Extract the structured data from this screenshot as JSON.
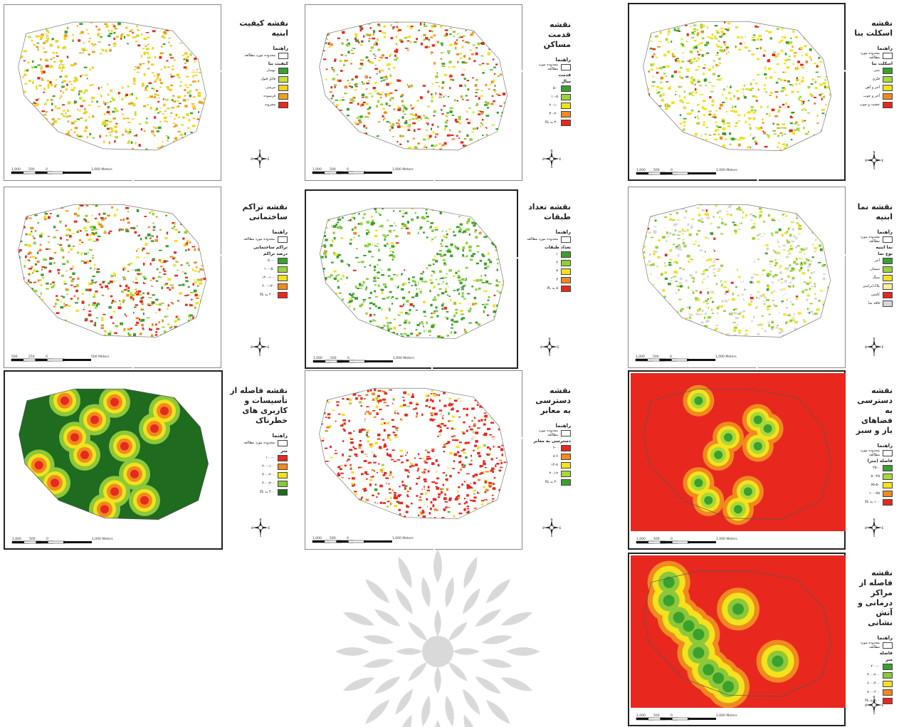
{
  "panels": [
    {
      "id": "p1",
      "title": "نقشه کیفیت\nابنیه",
      "legend_heading": "راهنما",
      "study_area": "محدوده مورد مطالعه",
      "group": "کیفیت بنا",
      "subgroup": "",
      "items": [
        {
          "label": "نوساز",
          "color": "#3aa02e"
        },
        {
          "label": "قابل قبول",
          "color": "#c6e03a"
        },
        {
          "label": "مرمتی",
          "color": "#f2d21c"
        },
        {
          "label": "فرسوده",
          "color": "#f0a020"
        },
        {
          "label": "مخروبه",
          "color": "#e8281e"
        }
      ],
      "scale": [
        "1,000",
        "500",
        "0",
        "1,000 Meters"
      ]
    },
    {
      "id": "p2",
      "title": "نقشه قدمت\nمساکن",
      "legend_heading": "راهنما",
      "study_area": "محدوده مورد مطالعه",
      "group": "قدمت",
      "subgroup": "سال",
      "items": [
        {
          "label": "۵-۰",
          "color": "#3aa02e"
        },
        {
          "label": "۱۰-۵",
          "color": "#9ad23a"
        },
        {
          "label": "۲۰-۱۰",
          "color": "#f2e21c"
        },
        {
          "label": "۳۰-۲۰",
          "color": "#f08a20"
        },
        {
          "label": "۳۰ به بالا",
          "color": "#e8281e"
        }
      ],
      "scale": [
        "1,000",
        "500",
        "0",
        "1,000 Meters"
      ]
    },
    {
      "id": "p3",
      "title": "نقشه اسکلت بنا",
      "legend_heading": "راهنما",
      "study_area": "محدوده مورد مطالعه",
      "group": "اسکلت بنا",
      "subgroup": "",
      "items": [
        {
          "label": "بتنی",
          "color": "#3aa02e"
        },
        {
          "label": "فلزی",
          "color": "#a6d83a"
        },
        {
          "label": "آجر و آهن",
          "color": "#f2e21c"
        },
        {
          "label": "آجر و چوب",
          "color": "#f08a20"
        },
        {
          "label": "خشت و چوب",
          "color": "#e8281e"
        }
      ],
      "scale": [
        "1,000",
        "500",
        "0",
        "1,000 Meters"
      ]
    },
    {
      "id": "p4",
      "title": "نقشه تراکم\nساختمانی",
      "legend_heading": "راهنما",
      "study_area": "محدوده مورد مطالعه",
      "group": "تراکم ساختمانی",
      "subgroup": "درصد تراکم",
      "items": [
        {
          "label": "۵۰-۰",
          "color": "#3aa02e"
        },
        {
          "label": "۱۰۰-۵۰",
          "color": "#9ad23a"
        },
        {
          "label": "۱۲۰-۱۰۰",
          "color": "#f2e21c"
        },
        {
          "label": "۲۰۰-۱۲۰",
          "color": "#f08a20"
        },
        {
          "label": "۲۰۰ به بالا",
          "color": "#e8281e"
        }
      ],
      "scale": [
        "500",
        "250",
        "0",
        "500 Meters"
      ]
    },
    {
      "id": "p5",
      "title": "نقشه تعداد\nطبقات",
      "legend_heading": "راهنما",
      "study_area": "محدوده مورد مطالعه",
      "group": "تعداد طبقات",
      "subgroup": "",
      "items": [
        {
          "label": "۱",
          "color": "#3aa02e"
        },
        {
          "label": "۲",
          "color": "#8cd03a"
        },
        {
          "label": "۳",
          "color": "#f2e21c"
        },
        {
          "label": "۴",
          "color": "#f08a20"
        },
        {
          "label": "۵ به بالا",
          "color": "#e8281e"
        }
      ],
      "scale": [
        "1,000",
        "500",
        "0",
        "1,000 Meters"
      ]
    },
    {
      "id": "p6",
      "title": "نقشه نما ابنیه",
      "legend_heading": "راهنما",
      "study_area": "محدوده مورد مطالعه",
      "group": "نما ابنیه",
      "subgroup": "نوع نما",
      "items": [
        {
          "label": "آجر",
          "color": "#3aa02e"
        },
        {
          "label": "سیمان",
          "color": "#9ad23a"
        },
        {
          "label": "سنگ",
          "color": "#f2e21c"
        },
        {
          "label": "پلاک/ترکیبی",
          "color": "#f6f0a0"
        },
        {
          "label": "کاشی",
          "color": "#e8281e"
        },
        {
          "label": "فاقد نما",
          "color": "#d8d8d8"
        }
      ],
      "scale": [
        "1,000",
        "500",
        "0",
        "1,000 Meters"
      ]
    },
    {
      "id": "p7",
      "title": "نقشه فاصله از\nتأسیسات و کاربری های\nخطرناک",
      "legend_heading": "راهنما",
      "study_area": "محدوده مورد مطالعه",
      "group": "متر",
      "subgroup": "",
      "items": [
        {
          "label": "۱۰۰-۰",
          "color": "#e8281e"
        },
        {
          "label": "۲۰۰-۱۰۰",
          "color": "#f08a20"
        },
        {
          "label": "۳۰۰-۲۰۰",
          "color": "#f2e21c"
        },
        {
          "label": "۴۰۰-۳۰۰",
          "color": "#8cc83a"
        },
        {
          "label": "۴۰۰ به بالا",
          "color": "#1f6b1f"
        }
      ],
      "scale": [
        "1,000",
        "500",
        "0",
        "1,000 Meters"
      ]
    },
    {
      "id": "p8",
      "title": "نقشه دسترسی\nبه معابر",
      "legend_heading": "راهنما",
      "study_area": "محدوده مورد مطالعه",
      "group": "دسترسی به معابر",
      "subgroup": "",
      "items": [
        {
          "label": "۶-۰",
          "color": "#e8281e"
        },
        {
          "label": "۸-۶",
          "color": "#f08a20"
        },
        {
          "label": "۱۲-۸",
          "color": "#f6e21c"
        },
        {
          "label": "۲۰-۱۲",
          "color": "#a8d83a"
        },
        {
          "label": "۲۰ به بالا",
          "color": "#3aa02e"
        }
      ],
      "scale": [
        "1,000",
        "500",
        "0",
        "1,000 Meters"
      ]
    },
    {
      "id": "p9",
      "title": "نقشه دسترسی به\nفضاهای باز و سبز",
      "legend_heading": "راهنما",
      "study_area": "محدوده مورد مطالعه",
      "group": "فاصله (متر)",
      "subgroup": "",
      "items": [
        {
          "label": "۲۵-۰",
          "color": "#3aa02e"
        },
        {
          "label": "۵۰-۲۵",
          "color": "#a8d83a"
        },
        {
          "label": "۷۵-۵۰",
          "color": "#f6e21c"
        },
        {
          "label": "۱۰۰-۷۵",
          "color": "#f08a20"
        },
        {
          "label": "۱۰۰ به بالا",
          "color": "#e8281e"
        }
      ],
      "scale": [
        "1,000",
        "500",
        "0",
        "1,000 Meters"
      ]
    },
    {
      "id": "p10",
      "title": "نقشه فاصله از\nمراکز درمانی و\nآتش نشانی",
      "legend_heading": "راهنما",
      "study_area": "محدوده مورد مطالعه",
      "group": "فاصله",
      "subgroup": "متر",
      "items": [
        {
          "label": "۲۰۰-۰",
          "color": "#3aa02e"
        },
        {
          "label": "۴۰۰-۲۰۰",
          "color": "#8cc83a"
        },
        {
          "label": "۶۰۰-۴۰۰",
          "color": "#f6e21c"
        },
        {
          "label": "۸۰۰-۶۰۰",
          "color": "#f08a20"
        },
        {
          "label": "۸۰۰ به بالا",
          "color": "#e8281e"
        }
      ],
      "scale": [
        "1,000",
        "500",
        "0",
        "1,000 Meters"
      ]
    }
  ],
  "north_letters": {
    "n": "N",
    "s": "S",
    "e": "E",
    "w": "W"
  }
}
